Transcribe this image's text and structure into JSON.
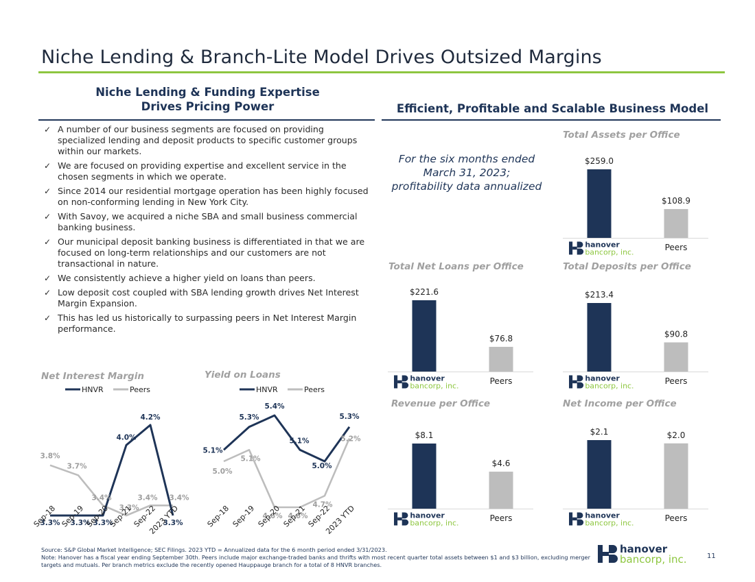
{
  "page": {
    "title": "Niche Lending & Branch-Lite Model Drives Outsized Margins",
    "page_number": "11"
  },
  "left_section": {
    "heading_line1": "Niche Lending & Funding Expertise",
    "heading_line2": "Drives Pricing Power",
    "bullets": [
      "A number of our business segments are focused on providing specialized lending and deposit products to specific customer groups within our markets.",
      "We are focused on providing expertise and excellent service in the chosen segments in which we operate.",
      "Since 2014 our residential mortgage operation has been highly focused on non-conforming lending in New York City.",
      "With Savoy, we acquired a niche SBA and small business commercial banking business.",
      "Our municipal deposit banking business is differentiated in that we are focused on long-term relationships and our customers are not transactional in nature.",
      "We consistently achieve a higher yield on loans than peers.",
      "Low deposit cost coupled with SBA lending growth drives Net Interest Margin Expansion.",
      "This has led us historically to surpassing peers in Net Interest Margin performance."
    ]
  },
  "right_section": {
    "heading": "Efficient, Profitable and Scalable Business Model",
    "note": "For the six months ended March 31, 2023; profitability data annualized"
  },
  "logo": {
    "line1": "hanover",
    "line2": "bancorp, inc."
  },
  "footer": {
    "line1": "Source: S&P Global Market Intelligence; SEC Filings. 2023 YTD = Annualized data for the 6 month period ended 3/31/2023.",
    "line2": "Note: Hanover has a fiscal year ending September 30th. Peers include major exchange-traded banks and thrifts with most recent quarter total assets between $1 and $3 billion, excluding merger targets and mutuals. Per branch metrics exclude the recently opened Hauppauge branch for a total of 8 HNVR branches."
  },
  "colors": {
    "navy": "#1e3457",
    "gray": "#bdbdbd",
    "green": "#8dc63f",
    "light_gray_text": "#a0a0a0"
  },
  "chart_data": [
    {
      "id": "nim",
      "type": "line",
      "title": "Net Interest Margin",
      "x": [
        "Sep-18",
        "Sep-19",
        "Sep-20",
        "Sep-21",
        "Sep-22",
        "2023 YTD"
      ],
      "series": [
        {
          "name": "HNVR",
          "values": [
            3.3,
            3.3,
            3.3,
            4.0,
            4.2,
            3.3
          ],
          "labels": [
            "3.3%",
            "3.3%",
            "3.3%",
            "4.0%",
            "4.2%",
            "3.3%"
          ],
          "color": "#1e3457"
        },
        {
          "name": "Peers",
          "values": [
            3.8,
            3.7,
            3.4,
            3.3,
            3.4,
            3.4
          ],
          "labels": [
            "3.8%",
            "3.7%",
            "3.4%",
            "3.3%",
            "3.4%",
            "3.4%"
          ],
          "color": "#bdbdbd"
        }
      ],
      "legend": "top",
      "grid": false
    },
    {
      "id": "yield",
      "type": "line",
      "title": "Yield on Loans",
      "x": [
        "Sep-18",
        "Sep-19",
        "Sep-20",
        "Sep-21",
        "Sep-22",
        "2023 YTD"
      ],
      "series": [
        {
          "name": "HNVR",
          "values": [
            5.1,
            5.3,
            5.4,
            5.1,
            5.0,
            5.3
          ],
          "labels": [
            "5.1%",
            "5.3%",
            "5.4%",
            "5.1%",
            "5.0%",
            "5.3%"
          ],
          "color": "#1e3457"
        },
        {
          "name": "Peers",
          "values": [
            5.0,
            5.1,
            4.6,
            4.6,
            4.7,
            5.2
          ],
          "labels": [
            "5.0%",
            "5.1%",
            "4.6%",
            "4.6%",
            "4.7%",
            "5.2%"
          ],
          "color": "#bdbdbd"
        }
      ],
      "legend": "top",
      "grid": false
    },
    {
      "id": "assets",
      "type": "bar",
      "title": "Total Assets per Office",
      "categories": [
        "hanover bancorp, inc.",
        "Peers"
      ],
      "values": [
        259.0,
        108.9
      ],
      "labels": [
        "$259.0",
        "$108.9"
      ]
    },
    {
      "id": "loans",
      "type": "bar",
      "title": "Total Net Loans per Office",
      "categories": [
        "hanover bancorp, inc.",
        "Peers"
      ],
      "values": [
        221.6,
        76.8
      ],
      "labels": [
        "$221.6",
        "$76.8"
      ]
    },
    {
      "id": "deposits",
      "type": "bar",
      "title": "Total Deposits per Office",
      "categories": [
        "hanover bancorp, inc.",
        "Peers"
      ],
      "values": [
        213.4,
        90.8
      ],
      "labels": [
        "$213.4",
        "$90.8"
      ]
    },
    {
      "id": "revenue",
      "type": "bar",
      "title": "Revenue per Office",
      "categories": [
        "hanover bancorp, inc.",
        "Peers"
      ],
      "values": [
        8.1,
        4.6
      ],
      "labels": [
        "$8.1",
        "$4.6"
      ]
    },
    {
      "id": "netincome",
      "type": "bar",
      "title": "Net Income per Office",
      "categories": [
        "hanover bancorp, inc.",
        "Peers"
      ],
      "values": [
        2.1,
        2.0
      ],
      "labels": [
        "$2.1",
        "$2.0"
      ]
    }
  ]
}
